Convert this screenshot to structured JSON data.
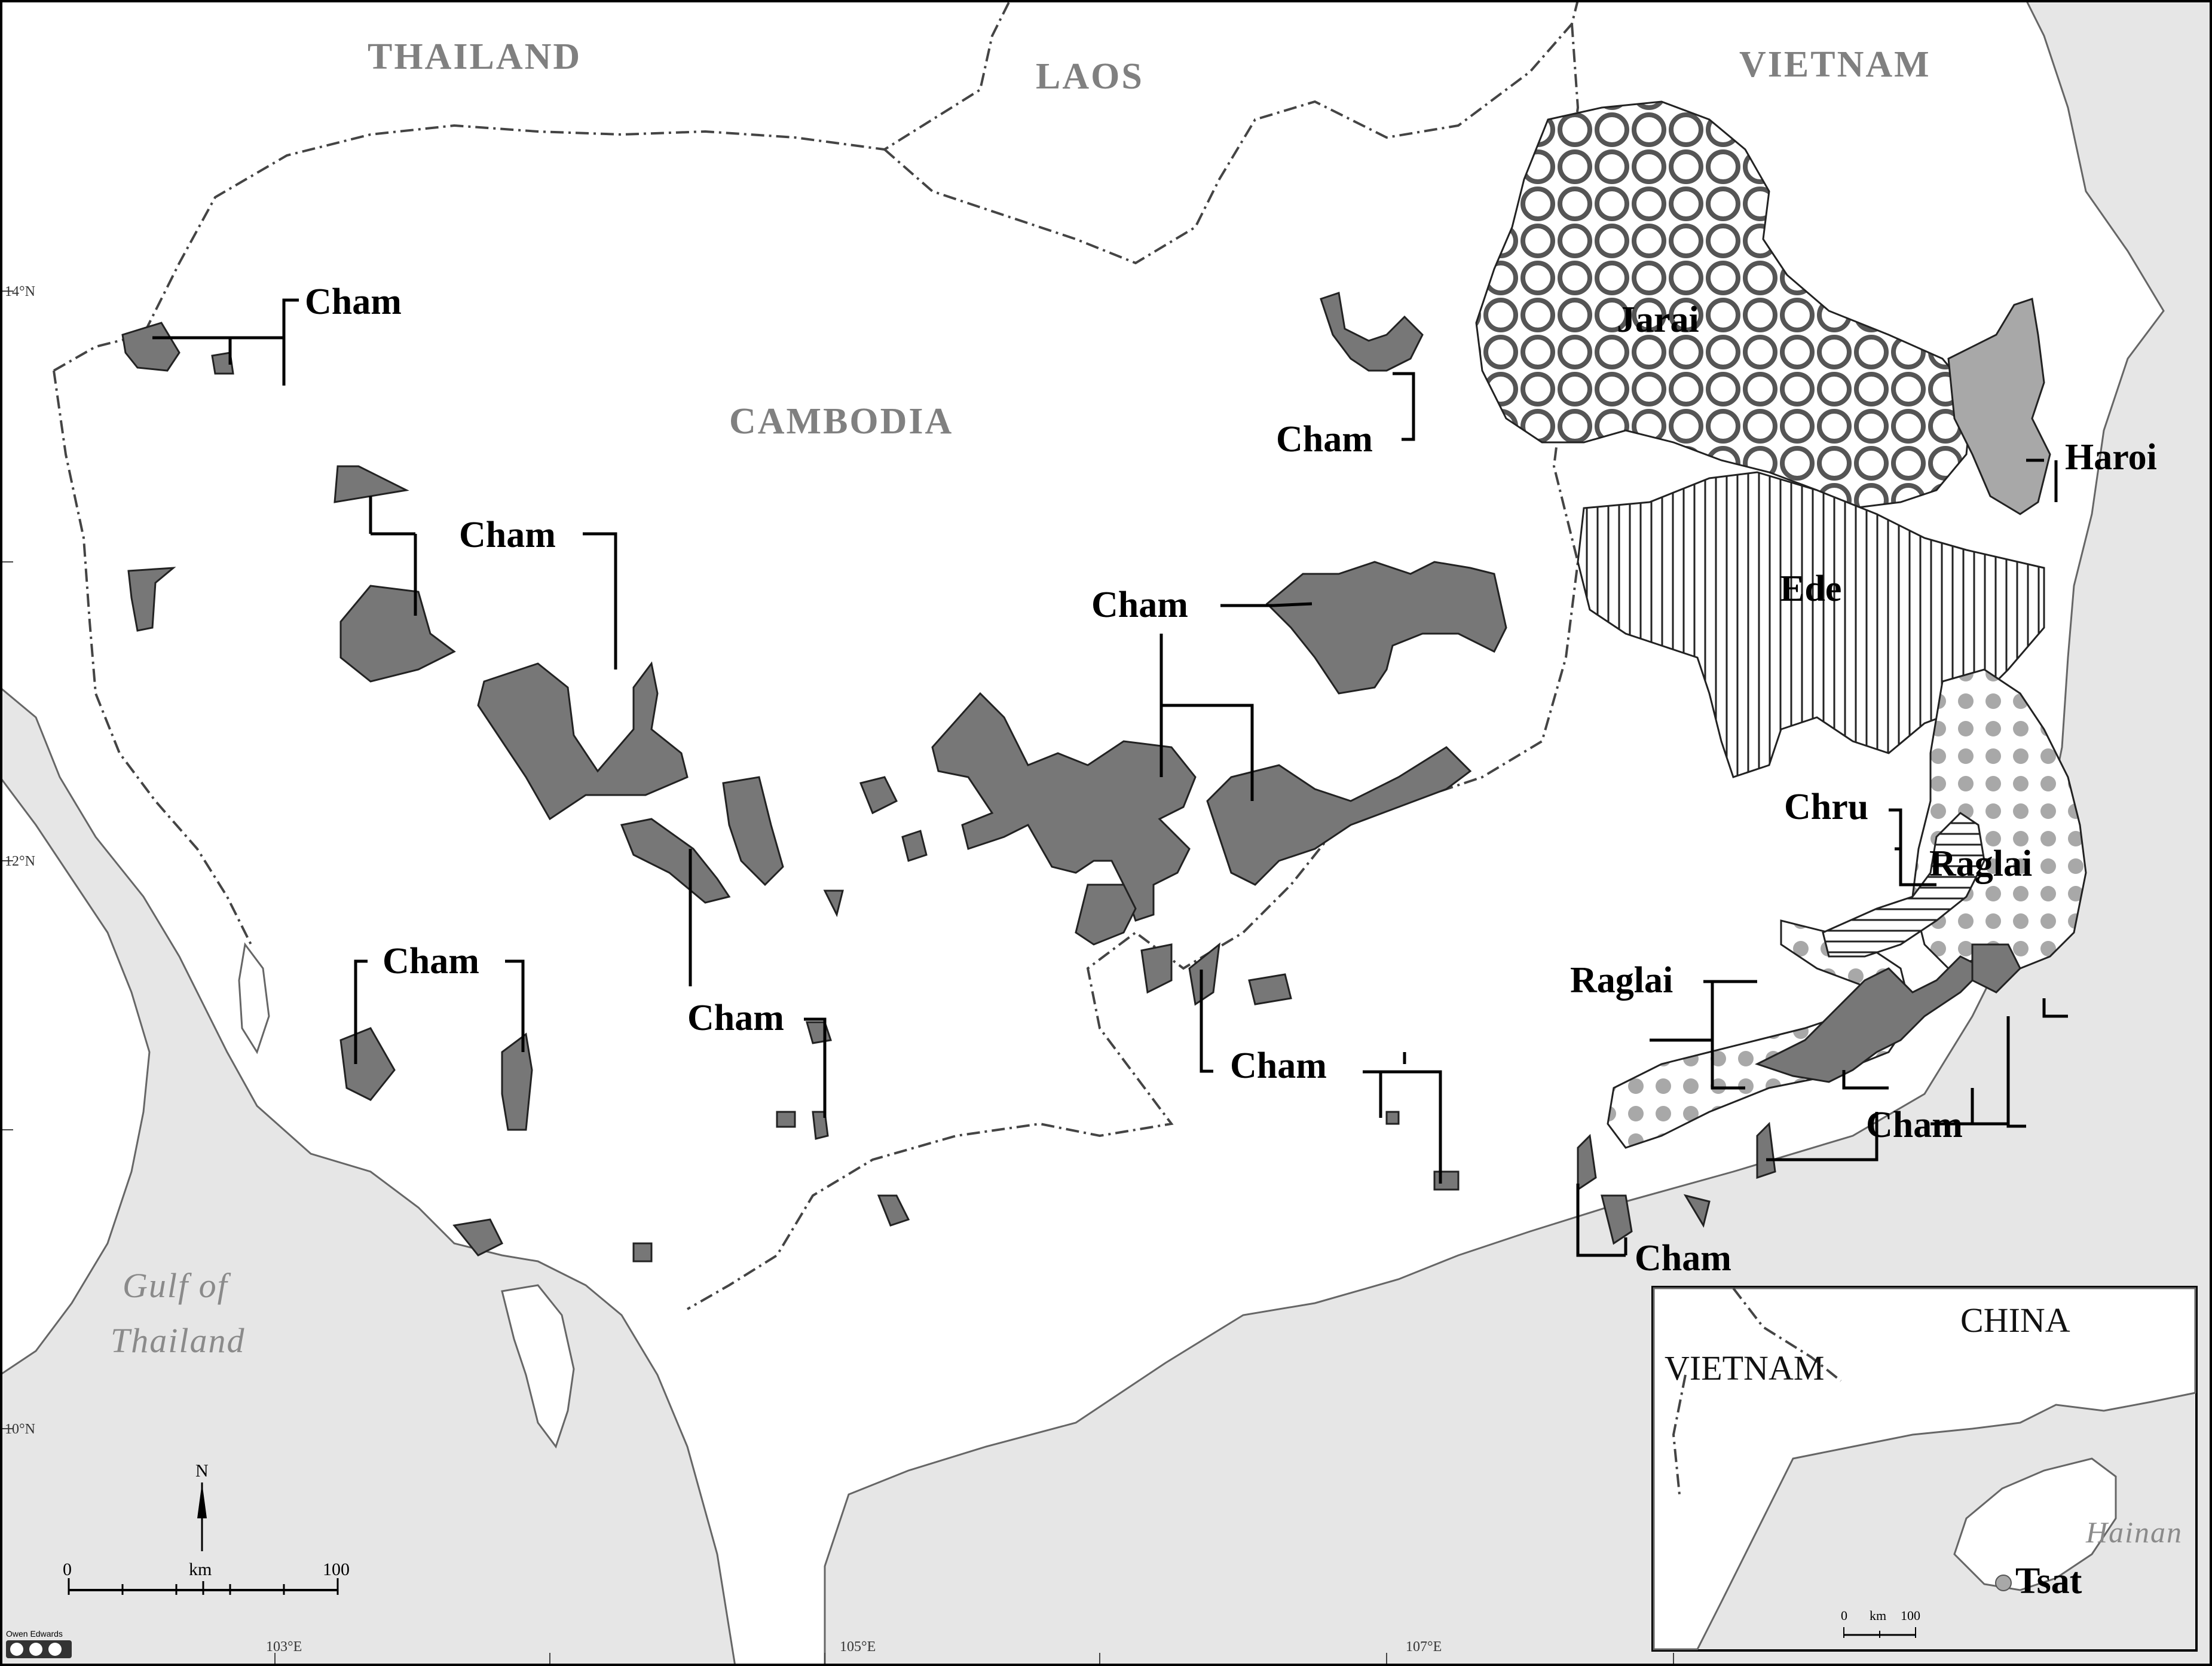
{
  "countries": {
    "thailand": "THAILAND",
    "laos": "LAOS",
    "vietnam": "VIETNAM",
    "cambodia": "CAMBODIA"
  },
  "sea": {
    "line1": "Gulf of",
    "line2": "Thailand"
  },
  "latitudes": [
    "14°N",
    "12°N",
    "10°N"
  ],
  "longitudes": [
    "103°E",
    "105°E",
    "107°E"
  ],
  "languages": {
    "cham": "Cham",
    "jarai": "Jarai",
    "haroi": "Haroi",
    "ede": "Ede",
    "chru": "Chru",
    "raglai": "Raglai",
    "tsat": "Tsat"
  },
  "scale_bar": {
    "north": "N",
    "start": "0",
    "unit": "km",
    "end": "100"
  },
  "inset": {
    "china": "CHINA",
    "vietnam": "VIETNAM",
    "island": "Hainan",
    "language": "Tsat",
    "scale_start": "0",
    "scale_unit": "km",
    "scale_end": "100"
  },
  "credit": "Owen Edwards",
  "colors": {
    "cham_fill": "#777777",
    "haroi_fill": "#a8a8a8",
    "sea": "#e6e6e6",
    "raglai_dots": "#a0a0a0"
  }
}
